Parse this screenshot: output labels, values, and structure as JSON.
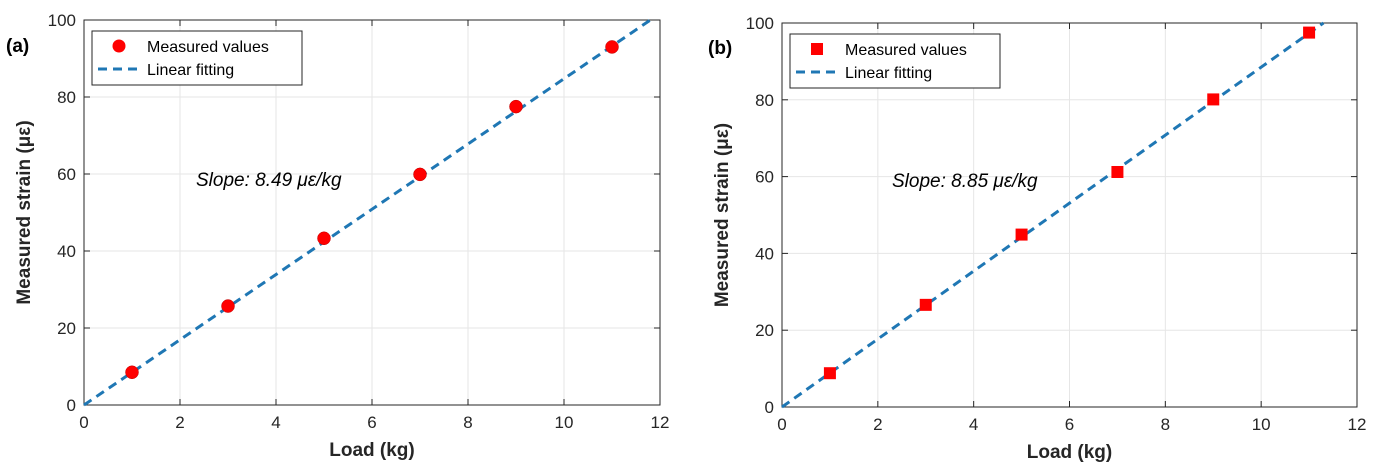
{
  "chart_data": [
    {
      "type": "scatter",
      "panel_label": "(a)",
      "xlabel": "Load (kg)",
      "ylabel": "Measured strain (με)",
      "xlim": [
        0,
        12
      ],
      "ylim": [
        0,
        100
      ],
      "xticks": [
        "0",
        "2",
        "4",
        "6",
        "8",
        "10",
        "12"
      ],
      "yticks": [
        "0",
        "20",
        "40",
        "60",
        "80",
        "100"
      ],
      "grid": true,
      "legend_position": "top-left",
      "annotation": "Slope: 8.49 με/kg",
      "series": [
        {
          "name": "Measured values",
          "marker": "circle",
          "color": "#ff0000",
          "x": [
            1,
            3,
            5,
            7,
            9,
            11
          ],
          "y": [
            8.5,
            25.7,
            43.3,
            59.9,
            77.5,
            93.0
          ]
        },
        {
          "name": "Linear fitting",
          "style": "dashed-line",
          "color": "#1f77b4",
          "x": [
            0,
            11.8
          ],
          "y": [
            0,
            100
          ]
        }
      ]
    },
    {
      "type": "scatter",
      "panel_label": "(b)",
      "xlabel": "Load (kg)",
      "ylabel": "Measured strain (με)",
      "xlim": [
        0,
        12
      ],
      "ylim": [
        0,
        100
      ],
      "xticks": [
        "0",
        "2",
        "4",
        "6",
        "8",
        "10",
        "12"
      ],
      "yticks": [
        "0",
        "20",
        "40",
        "60",
        "80",
        "100"
      ],
      "grid": true,
      "legend_position": "top-left",
      "annotation": "Slope: 8.85 με/kg",
      "series": [
        {
          "name": "Measured values",
          "marker": "square",
          "color": "#ff0000",
          "x": [
            1,
            3,
            5,
            7,
            9,
            11
          ],
          "y": [
            8.8,
            26.6,
            44.9,
            61.2,
            80.1,
            97.5
          ]
        },
        {
          "name": "Linear fitting",
          "style": "dashed-line",
          "color": "#1f77b4",
          "x": [
            0,
            11.3
          ],
          "y": [
            0,
            100
          ]
        }
      ]
    }
  ]
}
